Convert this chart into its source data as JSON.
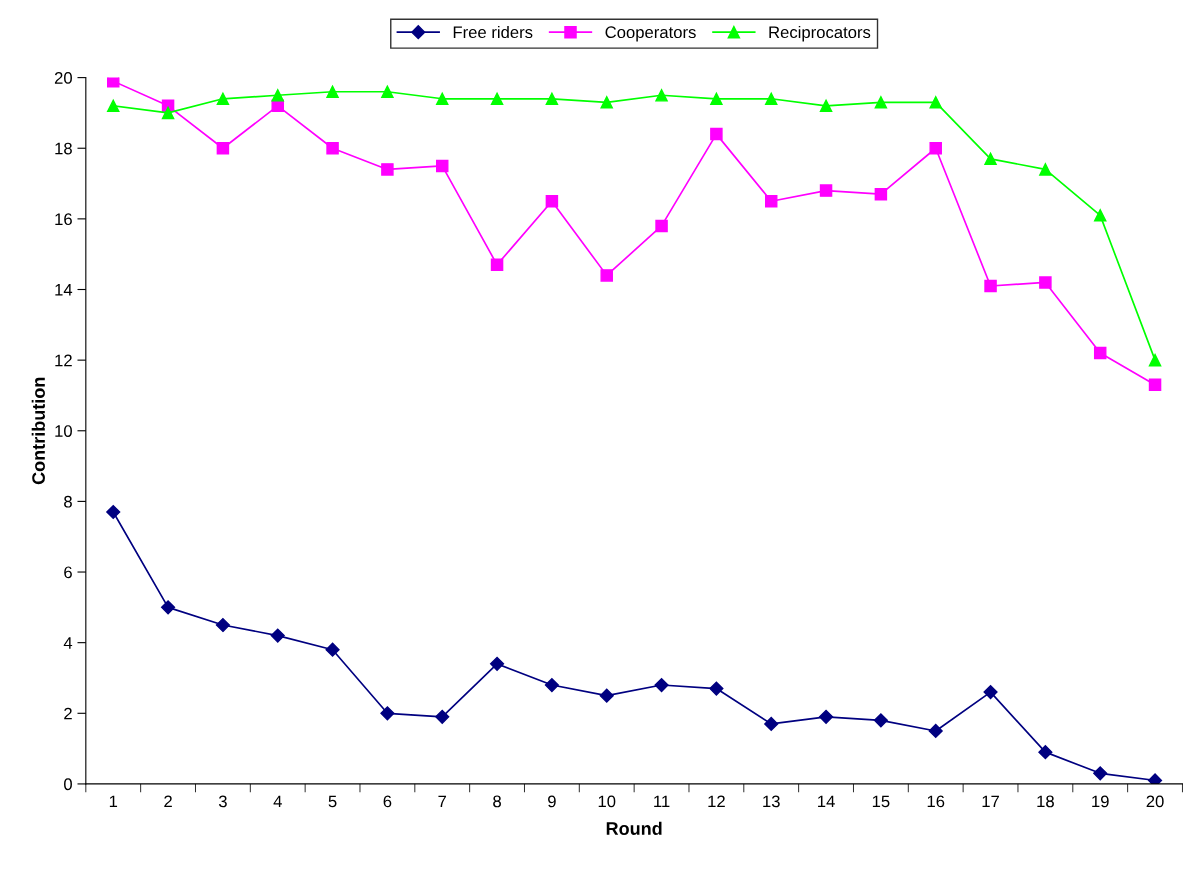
{
  "chart_data": {
    "type": "line",
    "xlabel": "Round",
    "ylabel": "Contribution",
    "categories": [
      "1",
      "2",
      "3",
      "4",
      "5",
      "6",
      "7",
      "8",
      "9",
      "10",
      "11",
      "12",
      "13",
      "14",
      "15",
      "16",
      "17",
      "18",
      "19",
      "20"
    ],
    "series": [
      {
        "name": "Free riders",
        "color": "#000080",
        "marker": "diamond",
        "values": [
          7.7,
          5.0,
          4.5,
          4.2,
          3.8,
          2.0,
          1.9,
          3.4,
          2.8,
          2.5,
          2.8,
          2.7,
          1.7,
          1.9,
          1.8,
          1.5,
          2.6,
          0.9,
          0.3,
          0.1
        ]
      },
      {
        "name": "Cooperators",
        "color": "#ff00ff",
        "marker": "square",
        "values": [
          19.9,
          19.2,
          18.0,
          19.2,
          18.0,
          17.4,
          17.5,
          14.7,
          16.5,
          14.4,
          15.8,
          18.4,
          16.5,
          16.8,
          16.7,
          18.0,
          14.1,
          14.2,
          12.2,
          11.3
        ]
      },
      {
        "name": "Reciprocators",
        "color": "#00ff00",
        "marker": "triangle",
        "values": [
          19.2,
          19.0,
          19.4,
          19.5,
          19.6,
          19.6,
          19.4,
          19.4,
          19.4,
          19.3,
          19.5,
          19.4,
          19.4,
          19.2,
          19.3,
          19.3,
          17.7,
          17.4,
          16.1,
          12.0
        ]
      }
    ],
    "ylim": [
      0,
      20
    ],
    "yticks": [
      0,
      2,
      4,
      6,
      8,
      10,
      12,
      14,
      16,
      18,
      20
    ],
    "grid": false,
    "legend": "top",
    "line_style": "solid"
  }
}
